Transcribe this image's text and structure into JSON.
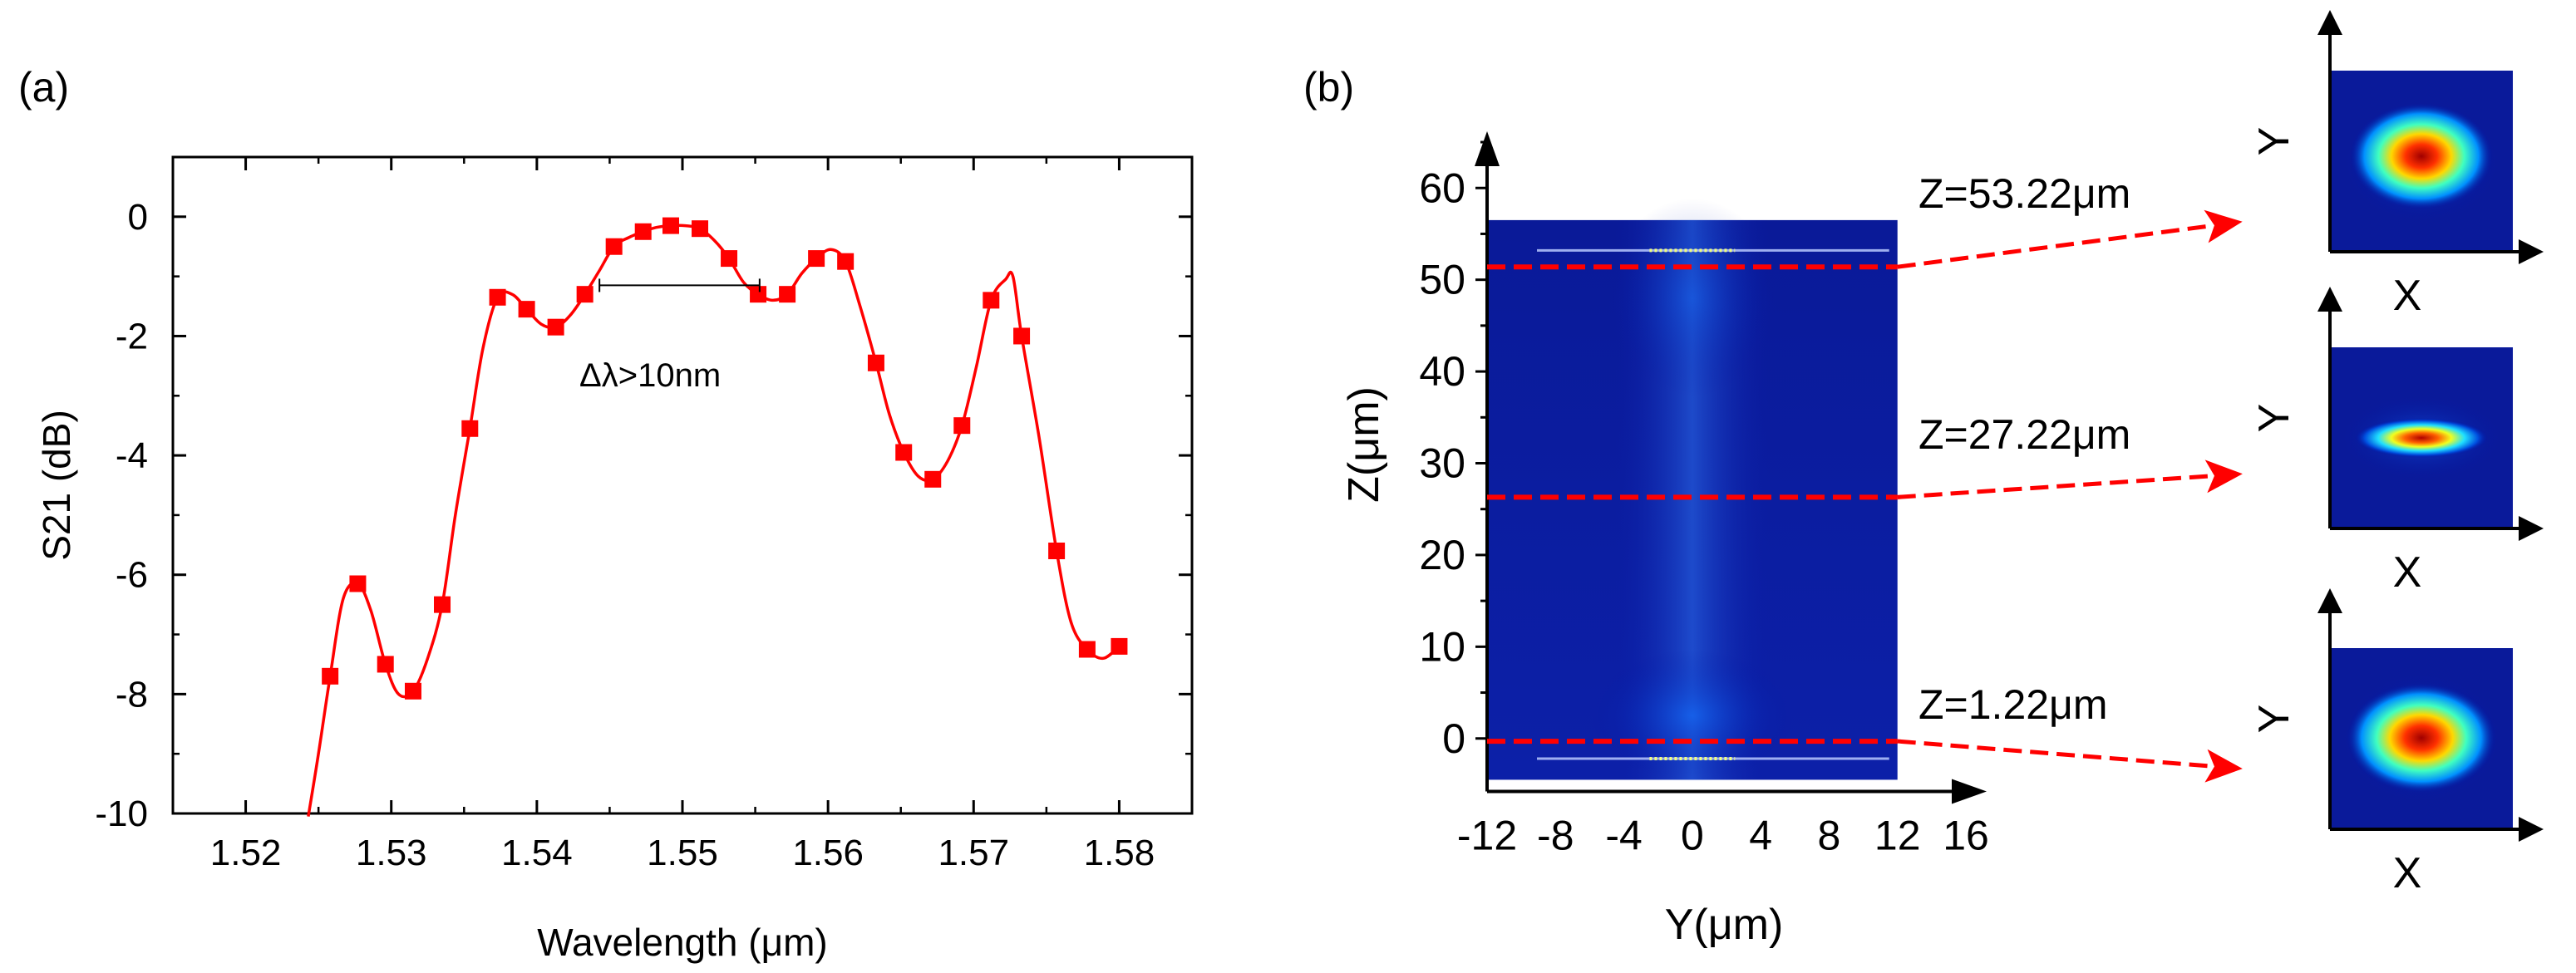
{
  "chart_data": [
    {
      "type": "line",
      "panel_label": "(a)",
      "title": "",
      "xlabel": "Wavelength (μm)",
      "ylabel": "S21 (dB)",
      "xlim": [
        1.515,
        1.585
      ],
      "ylim": [
        -10,
        1
      ],
      "xticks": [
        1.52,
        1.53,
        1.54,
        1.55,
        1.56,
        1.57,
        1.58
      ],
      "xtick_labels": [
        "1.52",
        "1.53",
        "1.54",
        "1.55",
        "1.56",
        "1.57",
        "1.58"
      ],
      "yticks": [
        -10,
        -8,
        -6,
        -4,
        -2,
        0
      ],
      "ytick_labels": [
        "-10",
        "-8",
        "-6",
        "-4",
        "-2",
        "0"
      ],
      "series": [
        {
          "name": "S21",
          "color": "#ff0000",
          "marker": "square",
          "x": [
            1.5258,
            1.5277,
            1.5296,
            1.5315,
            1.5335,
            1.5354,
            1.5373,
            1.5393,
            1.5413,
            1.5433,
            1.5453,
            1.5473,
            1.5492,
            1.5512,
            1.5532,
            1.5552,
            1.5572,
            1.5592,
            1.5612,
            1.5633,
            1.5652,
            1.5672,
            1.5692,
            1.5712,
            1.5733,
            1.5757,
            1.5778,
            1.58
          ],
          "values": [
            -7.7,
            -6.15,
            -7.5,
            -7.95,
            -6.5,
            -3.55,
            -1.35,
            -1.55,
            -1.85,
            -1.3,
            -0.5,
            -0.25,
            -0.15,
            -0.2,
            -0.7,
            -1.3,
            -1.3,
            -0.7,
            -0.75,
            -2.45,
            -3.95,
            -4.4,
            -3.5,
            -1.4,
            -2.0,
            -5.6,
            -7.25,
            -7.2
          ]
        }
      ],
      "curve": {
        "x": [
          1.5243,
          1.525,
          1.5258,
          1.5267,
          1.5277,
          1.5286,
          1.5296,
          1.5305,
          1.5315,
          1.5325,
          1.5335,
          1.5344,
          1.5354,
          1.5363,
          1.5373,
          1.5383,
          1.5393,
          1.5403,
          1.5413,
          1.5423,
          1.5433,
          1.5443,
          1.5453,
          1.5463,
          1.5473,
          1.5482,
          1.5492,
          1.5502,
          1.5512,
          1.5522,
          1.5532,
          1.5542,
          1.5552,
          1.5562,
          1.5572,
          1.5582,
          1.5592,
          1.5602,
          1.5612,
          1.5622,
          1.5633,
          1.5642,
          1.5652,
          1.5662,
          1.5672,
          1.5682,
          1.5692,
          1.5702,
          1.5712,
          1.5722,
          1.5727,
          1.5733,
          1.5745,
          1.5757,
          1.5767,
          1.5778,
          1.5789,
          1.58
        ],
        "values": [
          -10.2,
          -9.0,
          -7.7,
          -6.4,
          -6.15,
          -6.6,
          -7.5,
          -8.0,
          -7.95,
          -7.4,
          -6.5,
          -5.0,
          -3.55,
          -2.2,
          -1.35,
          -1.3,
          -1.55,
          -1.8,
          -1.85,
          -1.65,
          -1.3,
          -0.9,
          -0.5,
          -0.35,
          -0.25,
          -0.18,
          -0.15,
          -0.15,
          -0.2,
          -0.4,
          -0.7,
          -1.1,
          -1.3,
          -1.4,
          -1.3,
          -0.95,
          -0.7,
          -0.55,
          -0.75,
          -1.5,
          -2.45,
          -3.3,
          -3.95,
          -4.35,
          -4.4,
          -4.1,
          -3.5,
          -2.5,
          -1.4,
          -1.05,
          -1.0,
          -2.0,
          -3.7,
          -5.6,
          -6.8,
          -7.25,
          -7.4,
          -7.2
        ]
      },
      "annotation": {
        "text": "Δλ>10nm",
        "bar_x": [
          1.5443,
          1.5553
        ],
        "bar_y": -1.15
      }
    },
    {
      "type": "heatmap",
      "panel_label": "(b)",
      "xlabel": "Y(μm)",
      "ylabel": "Z(μm)",
      "xlim": [
        -12,
        16
      ],
      "ylim": [
        -6,
        66
      ],
      "xticks": [
        -12,
        -8,
        -4,
        0,
        4,
        8,
        12,
        16
      ],
      "xtick_labels": [
        "-12",
        "-8",
        "-4",
        "0",
        "4",
        "8",
        "12",
        "16"
      ],
      "yticks": [
        0,
        10,
        20,
        30,
        40,
        50,
        60
      ],
      "ytick_labels": [
        "0",
        "10",
        "20",
        "30",
        "40",
        "50",
        "60"
      ],
      "map_y_range": [
        -12,
        12
      ],
      "map_z_range": [
        -4.5,
        56.5
      ],
      "bright_lines_z": [
        53.2,
        -2.2
      ],
      "cuts": [
        {
          "z": 51.4,
          "label": "Z=53.22μm"
        },
        {
          "z": 26.3,
          "label": "Z=27.22μm"
        },
        {
          "z": -0.3,
          "label": "Z=1.22μm"
        }
      ],
      "mode_profiles": [
        {
          "name": "profile-top",
          "axis_x_label": "X",
          "axis_y_label": "Y",
          "shape": "wide"
        },
        {
          "name": "profile-middle",
          "axis_x_label": "X",
          "axis_y_label": "Y",
          "shape": "narrow"
        },
        {
          "name": "profile-bottom",
          "axis_x_label": "X",
          "axis_y_label": "Y",
          "shape": "round"
        }
      ]
    }
  ]
}
